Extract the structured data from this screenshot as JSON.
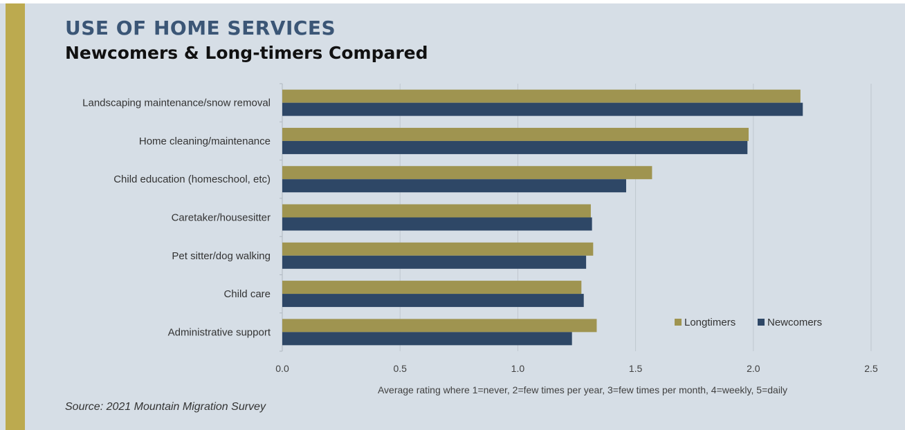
{
  "title": "USE OF HOME SERVICES",
  "subtitle": "Newcomers & Long-timers Compared",
  "source": "Source: 2021 Mountain Migration Survey",
  "colors": {
    "longtimers": "#9f9450",
    "newcomers": "#2e4766",
    "accent": "#bcaa4f",
    "background": "#d6dee6"
  },
  "chart_data": {
    "type": "bar",
    "orientation": "horizontal",
    "title": "USE OF HOME SERVICES",
    "subtitle": "Newcomers & Long-timers Compared",
    "xlabel": "Average rating where 1=never, 2=few times per year, 3=few times per month, 4=weekly, 5=daily",
    "ylabel": "",
    "xlim": [
      0,
      2.5
    ],
    "xticks": [
      "0.0",
      "0.5",
      "1.0",
      "1.5",
      "2.0",
      "2.5"
    ],
    "grid": true,
    "legend_position": "bottom-right",
    "categories": [
      "Landscaping maintenance/snow removal",
      "Home cleaning/maintenance",
      "Child education (homeschool, etc)",
      "Caretaker/housesitter",
      "Pet sitter/dog walking",
      "Child care",
      "Administrative support"
    ],
    "series": [
      {
        "name": "Longtimers",
        "color": "#9f9450",
        "values": [
          2.2,
          1.98,
          1.57,
          1.31,
          1.32,
          1.27,
          1.335
        ]
      },
      {
        "name": "Newcomers",
        "color": "#2e4766",
        "values": [
          2.21,
          1.975,
          1.46,
          1.315,
          1.29,
          1.28,
          1.23
        ]
      }
    ]
  }
}
